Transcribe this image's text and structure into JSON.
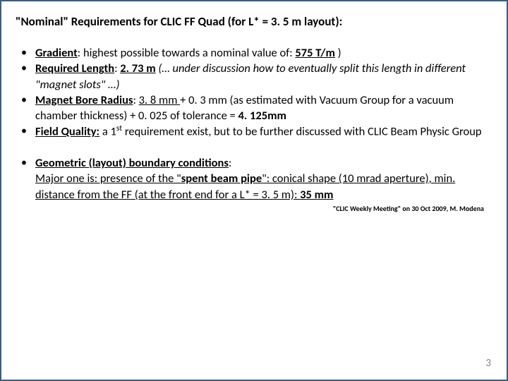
{
  "title": "\"Nominal\" Requirements for CLIC FF Quad (for L* = 3. 5 m layout):",
  "bullets": {
    "b1_label": "Gradient",
    "b1_text1": ": highest possible towards a nominal value of: ",
    "b1_val": "575 T/m",
    "b1_tail": " )",
    "b2_label": "Required Length",
    "b2_sep": ": ",
    "b2_val": "2. 73 m",
    "b2_italic": " (… under discussion how to eventually split this length in different \"magnet slots\" …)",
    "b3_label": "Magnet Bore Radius",
    "b3_sep": ": ",
    "b3_val": "3. 8 mm ",
    "b3_text1": "+ 0. 3 mm (as estimated with Vacuum Group for a vacuum chamber thickness) + 0. 025 of tolerance = ",
    "b3_total": "4. 125mm",
    "b4_label": "Field Quality:",
    "b4_text1": " a 1",
    "b4_sup": "st",
    "b4_text2": "  requirement exist, but to be further discussed with CLIC Beam Physic Group",
    "b5_label": "Geometric (layout) boundary conditions",
    "b5_text1": ":",
    "b5_line2a": "Major one is: presence of the \"",
    "b5_line2b": "spent beam pipe",
    "b5_line2c": "\": conical shape (10 mrad aperture), min. distance from the FF (at the front end for a L* = 3. 5 m): ",
    "b5_val": "35 mm"
  },
  "citation": "\"CLIC Weekly Meeting\" on 30 Oct 2009, M. Modena",
  "pagenum": "3"
}
